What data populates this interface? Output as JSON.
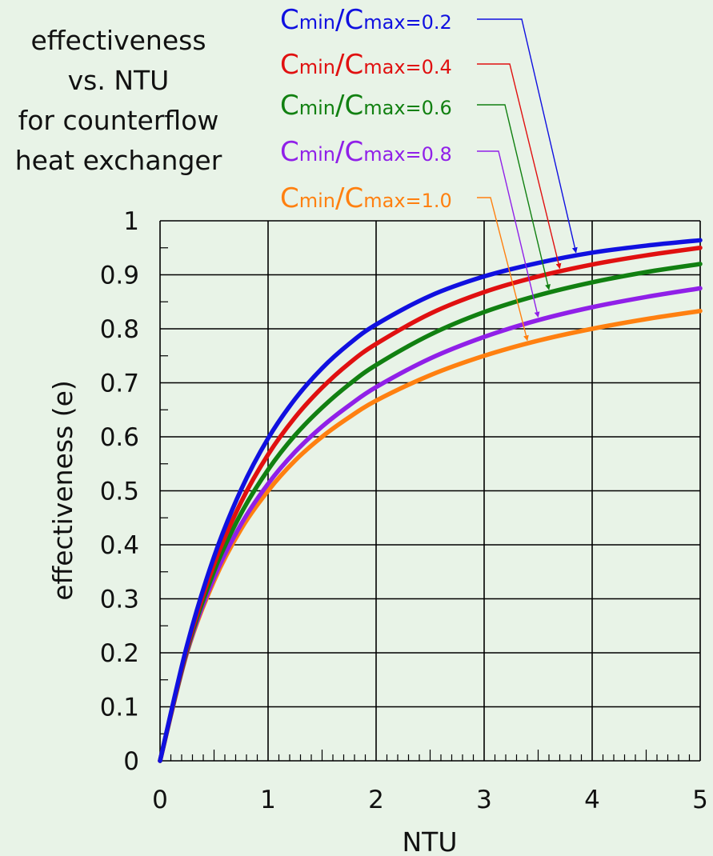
{
  "chart_data": {
    "type": "line",
    "title_lines": [
      "effectiveness",
      "vs. NTU",
      "for counterflow",
      "heat exchanger"
    ],
    "xlabel": "NTU",
    "ylabel": "effectiveness (e)",
    "xlim": [
      0,
      5
    ],
    "ylim": [
      0,
      1
    ],
    "grid": true,
    "x_ticks": [
      "0",
      "1",
      "2",
      "3",
      "4",
      "5"
    ],
    "y_ticks": [
      "0",
      "0.1",
      "0.2",
      "0.3",
      "0.4",
      "0.5",
      "0.6",
      "0.7",
      "0.8",
      "0.9",
      "1"
    ],
    "x": [
      0,
      0.25,
      0.5,
      0.75,
      1,
      1.25,
      1.5,
      1.75,
      2,
      2.5,
      3,
      3.5,
      4,
      4.5,
      5
    ],
    "series": [
      {
        "name": "Cmin/Cmax=0.2",
        "ratio_prefix": "Cmin/Cmax=",
        "ratio_value": "0.2",
        "color": "#1010e0",
        "values": [
          0,
          0.214,
          0.378,
          0.502,
          0.597,
          0.67,
          0.727,
          0.772,
          0.808,
          0.861,
          0.897,
          0.922,
          0.941,
          0.954,
          0.964
        ]
      },
      {
        "name": "Cmin/Cmax=0.4",
        "ratio_prefix": "Cmin/Cmax=",
        "ratio_value": "0.4",
        "color": "#e01010",
        "values": [
          0,
          0.209,
          0.364,
          0.479,
          0.567,
          0.636,
          0.691,
          0.736,
          0.772,
          0.828,
          0.868,
          0.897,
          0.919,
          0.936,
          0.95
        ]
      },
      {
        "name": "Cmin/Cmax=0.6",
        "ratio_prefix": "Cmin/Cmax=",
        "ratio_value": "0.6",
        "color": "#118011",
        "values": [
          0,
          0.205,
          0.351,
          0.458,
          0.539,
          0.603,
          0.654,
          0.697,
          0.733,
          0.789,
          0.831,
          0.862,
          0.886,
          0.905,
          0.92
        ]
      },
      {
        "name": "Cmin/Cmax=0.8",
        "ratio_prefix": "Cmin/Cmax=",
        "ratio_value": "0.8",
        "color": "#9020e8",
        "values": [
          0,
          0.202,
          0.339,
          0.438,
          0.513,
          0.572,
          0.619,
          0.658,
          0.692,
          0.745,
          0.785,
          0.816,
          0.84,
          0.859,
          0.875
        ]
      },
      {
        "name": "Cmin/Cmax=1.0",
        "ratio_prefix": "Cmin/Cmax=",
        "ratio_value": "1.0",
        "color": "#ff8010",
        "values": [
          0,
          0.2,
          0.333,
          0.429,
          0.5,
          0.556,
          0.6,
          0.636,
          0.667,
          0.714,
          0.75,
          0.778,
          0.8,
          0.818,
          0.833
        ]
      }
    ],
    "legend_placement": "top-right, with leader arrows to curves",
    "arrow_targets_ntu": [
      3.85,
      3.7,
      3.6,
      3.5,
      3.4
    ]
  }
}
